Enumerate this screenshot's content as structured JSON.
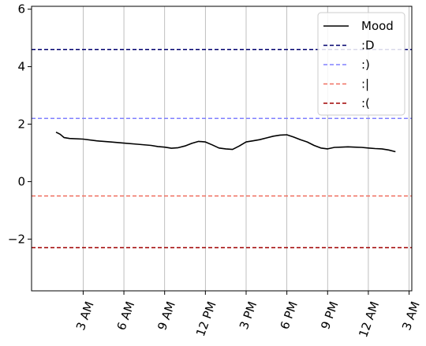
{
  "chart_data": {
    "type": "line",
    "title": "",
    "xlabel": "",
    "ylabel": "",
    "x_ticks": [
      {
        "hours": 3,
        "label": "3 AM"
      },
      {
        "hours": 6,
        "label": "6 AM"
      },
      {
        "hours": 9,
        "label": "9 AM"
      },
      {
        "hours": 12,
        "label": "12 PM"
      },
      {
        "hours": 15,
        "label": "3 PM"
      },
      {
        "hours": 18,
        "label": "6 PM"
      },
      {
        "hours": 21,
        "label": "9 PM"
      },
      {
        "hours": 24,
        "label": "12 AM"
      },
      {
        "hours": 27,
        "label": "3 AM"
      }
    ],
    "xlim": [
      -0.8,
      27.2
    ],
    "ylim": [
      -3.8,
      6.1
    ],
    "y_ticks": [
      {
        "value": 6,
        "label": "6"
      },
      {
        "value": 4,
        "label": "4"
      },
      {
        "value": 2,
        "label": "2"
      },
      {
        "value": 0,
        "label": "0"
      },
      {
        "value": -2,
        "label": "−2"
      }
    ],
    "grid": "vertical",
    "legend_position": "top-right",
    "series": [
      {
        "name": "Mood",
        "color": "#000000",
        "style": "solid",
        "x": [
          1.0,
          1.3,
          1.6,
          2.0,
          3.0,
          4.0,
          5.0,
          6.0,
          7.0,
          8.0,
          8.5,
          9.0,
          9.5,
          10.0,
          10.5,
          11.0,
          11.5,
          12.0,
          12.5,
          13.0,
          13.5,
          14.0,
          14.5,
          15.0,
          15.5,
          16.0,
          16.5,
          17.0,
          17.5,
          18.0,
          18.5,
          19.0,
          19.5,
          20.0,
          20.5,
          21.0,
          21.5,
          22.0,
          22.5,
          23.0,
          23.5,
          24.0,
          24.5,
          25.0,
          25.5,
          26.0
        ],
        "y": [
          1.72,
          1.65,
          1.53,
          1.5,
          1.48,
          1.42,
          1.38,
          1.34,
          1.3,
          1.26,
          1.22,
          1.2,
          1.16,
          1.18,
          1.24,
          1.33,
          1.4,
          1.38,
          1.28,
          1.17,
          1.14,
          1.12,
          1.24,
          1.38,
          1.42,
          1.46,
          1.52,
          1.58,
          1.62,
          1.63,
          1.55,
          1.46,
          1.38,
          1.26,
          1.17,
          1.14,
          1.19,
          1.2,
          1.21,
          1.2,
          1.19,
          1.17,
          1.15,
          1.14,
          1.1,
          1.04
        ]
      },
      {
        "name": ":D",
        "color": "#00006e",
        "style": "dashed",
        "y_const": 4.6
      },
      {
        "name": ":)",
        "color": "#8080ff",
        "style": "dashed",
        "y_const": 2.2
      },
      {
        "name": ":|",
        "color": "#f06f60",
        "style": "dashed",
        "y_const": -0.5
      },
      {
        "name": ":(",
        "color": "#a00000",
        "style": "dashed",
        "y_const": -2.3
      }
    ]
  }
}
